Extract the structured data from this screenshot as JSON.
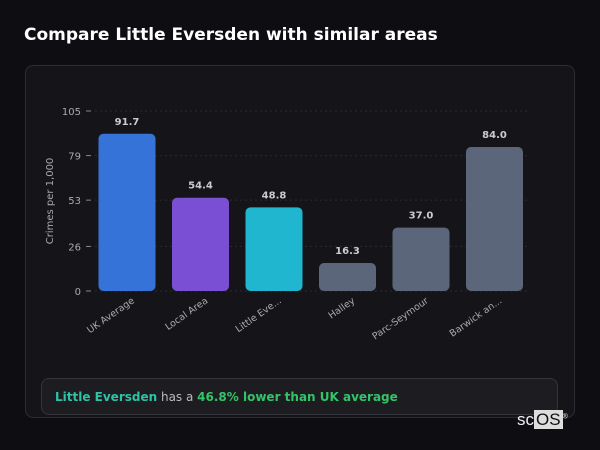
{
  "title": "Compare Little Eversden with similar areas",
  "chart_data": {
    "type": "bar",
    "ylabel": "Crimes per 1,000",
    "xlabel": "",
    "ylim": [
      0,
      105
    ],
    "yticks": [
      0,
      26,
      53,
      79,
      105
    ],
    "grid": true,
    "categories": [
      "UK Average",
      "Local Area",
      "Little Eve...",
      "Halley",
      "Parc-Seymour",
      "Barwick an..."
    ],
    "values": [
      91.7,
      54.4,
      48.8,
      16.3,
      37.0,
      84.0
    ],
    "value_labels": [
      "91.7",
      "54.4",
      "48.8",
      "16.3",
      "37.0",
      "84.0"
    ],
    "colors": [
      "#3673d8",
      "#7b4fd4",
      "#20b6cf",
      "#5b667a",
      "#5b667a",
      "#5b667a"
    ]
  },
  "summary": {
    "area": "Little Eversden",
    "middle": " has a ",
    "result": "46.8% lower than UK average"
  },
  "logo": {
    "text_a": "sc",
    "text_b": "OS",
    "mark": "®"
  }
}
